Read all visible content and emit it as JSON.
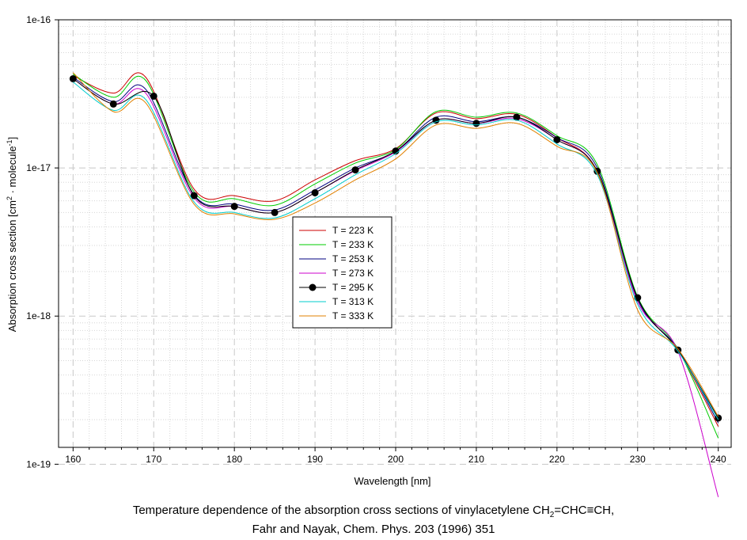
{
  "chart_data": {
    "type": "line",
    "xlabel": "Wavelength [nm]",
    "ylabel": {
      "prefix": "Absorption cross section [cm",
      "exp1": "2",
      "middle": " · molecule",
      "exp2": "-1",
      "suffix": "]"
    },
    "xlim": [
      158.2,
      241.6
    ],
    "ylim": [
      1.3e-19,
      1e-16
    ],
    "yscale": "log",
    "grid": true,
    "legend_position": "center",
    "x_ticks": [
      160,
      170,
      180,
      190,
      200,
      210,
      220,
      230,
      240
    ],
    "y_ticks": [
      {
        "value": 1e-19,
        "label": "1e-19"
      },
      {
        "value": 1e-18,
        "label": "1e-18"
      },
      {
        "value": 1e-17,
        "label": "1e-17"
      },
      {
        "value": 1e-16,
        "label": "1e-16"
      }
    ],
    "series": [
      {
        "name": "T = 223 K",
        "color": "#cc0000",
        "markers": false,
        "x": [
          160,
          165,
          169,
          175,
          180,
          185,
          190,
          195,
          200,
          205,
          210,
          215,
          220,
          225,
          230,
          235,
          240
        ],
        "y": [
          4.2e-17,
          3.2e-17,
          4.1e-17,
          7.2e-18,
          6.5e-18,
          6e-18,
          8.3e-18,
          1.12e-17,
          1.35e-17,
          2.35e-17,
          2.15e-17,
          2.3e-17,
          1.6e-17,
          9.5e-18,
          1.3e-18,
          5.9e-19,
          1.8e-19
        ]
      },
      {
        "name": "T = 233 K",
        "color": "#00cc00",
        "markers": false,
        "x": [
          160,
          165,
          169,
          175,
          180,
          185,
          190,
          195,
          200,
          205,
          210,
          215,
          220,
          225,
          230,
          235,
          240
        ],
        "y": [
          4.3e-17,
          3e-17,
          3.9e-17,
          6.9e-18,
          6.2e-18,
          5.6e-18,
          7.8e-18,
          1.08e-17,
          1.33e-17,
          2.4e-17,
          2.2e-17,
          2.35e-17,
          1.65e-17,
          1.05e-17,
          1.35e-18,
          6e-19,
          1.5e-19
        ]
      },
      {
        "name": "T = 253 K",
        "color": "#000080",
        "markers": false,
        "x": [
          160,
          165,
          169,
          175,
          180,
          185,
          190,
          195,
          200,
          205,
          210,
          215,
          220,
          225,
          230,
          235,
          240
        ],
        "y": [
          4.1e-17,
          2.8e-17,
          3.4e-17,
          6.6e-18,
          5.7e-18,
          5.2e-18,
          7.1e-18,
          1e-17,
          1.3e-17,
          2.2e-17,
          2.05e-17,
          2.2e-17,
          1.6e-17,
          1e-17,
          1.3e-18,
          6e-19,
          1.9e-19
        ]
      },
      {
        "name": "T = 273 K",
        "color": "#cc00cc",
        "markers": false,
        "x": [
          160,
          165,
          169,
          175,
          180,
          185,
          190,
          195,
          200,
          205,
          210,
          215,
          220,
          225,
          230,
          235,
          240
        ],
        "y": [
          4e-17,
          2.7e-17,
          3.2e-17,
          6.3e-18,
          5.5e-18,
          5e-18,
          6.8e-18,
          9.6e-18,
          1.28e-17,
          2.1e-17,
          2e-17,
          2.15e-17,
          1.55e-17,
          9.5e-18,
          1.25e-18,
          5.8e-19,
          6e-20
        ]
      },
      {
        "name": "T = 295 K",
        "color": "#000000",
        "markers": true,
        "x": [
          160,
          165,
          170,
          175,
          180,
          185,
          190,
          195,
          200,
          205,
          210,
          215,
          220,
          225,
          230,
          235,
          240
        ],
        "y": [
          4e-17,
          2.7e-17,
          3.05e-17,
          6.5e-18,
          5.5e-18,
          5e-18,
          6.8e-18,
          9.7e-18,
          1.3e-17,
          2.1e-17,
          2e-17,
          2.2e-17,
          1.55e-17,
          9.5e-18,
          1.33e-18,
          5.9e-19,
          2.05e-19
        ]
      },
      {
        "name": "T = 313 K",
        "color": "#00cccc",
        "markers": false,
        "x": [
          160,
          165,
          169,
          175,
          180,
          185,
          190,
          195,
          200,
          205,
          210,
          215,
          220,
          225,
          230,
          235,
          240
        ],
        "y": [
          3.8e-17,
          2.45e-17,
          2.9e-17,
          5.9e-18,
          5e-18,
          4.6e-18,
          6.2e-18,
          9e-18,
          1.25e-17,
          2.05e-17,
          1.95e-17,
          2.1e-17,
          1.45e-17,
          9e-18,
          1.2e-18,
          5.8e-19,
          2e-19
        ]
      },
      {
        "name": "T = 333 K",
        "color": "#e08000",
        "markers": false,
        "x": [
          160,
          165,
          169,
          175,
          180,
          185,
          190,
          195,
          200,
          205,
          210,
          215,
          220,
          225,
          230,
          235,
          240
        ],
        "y": [
          4.4e-17,
          2.4e-17,
          2.75e-17,
          5.7e-18,
          4.9e-18,
          4.5e-18,
          5.8e-18,
          8.3e-18,
          1.15e-17,
          1.95e-17,
          1.85e-17,
          2e-17,
          1.4e-17,
          9.3e-18,
          1.1e-18,
          6e-19,
          2.1e-19
        ]
      }
    ]
  },
  "caption": {
    "line1_prefix": "Temperature dependence of the absorption cross sections of vinylacetylene CH",
    "line1_sub": "2",
    "line1_suffix": "=CHC≡CH,",
    "line2": "Fahr and Nayak, Chem. Phys. 203 (1996) 351"
  }
}
